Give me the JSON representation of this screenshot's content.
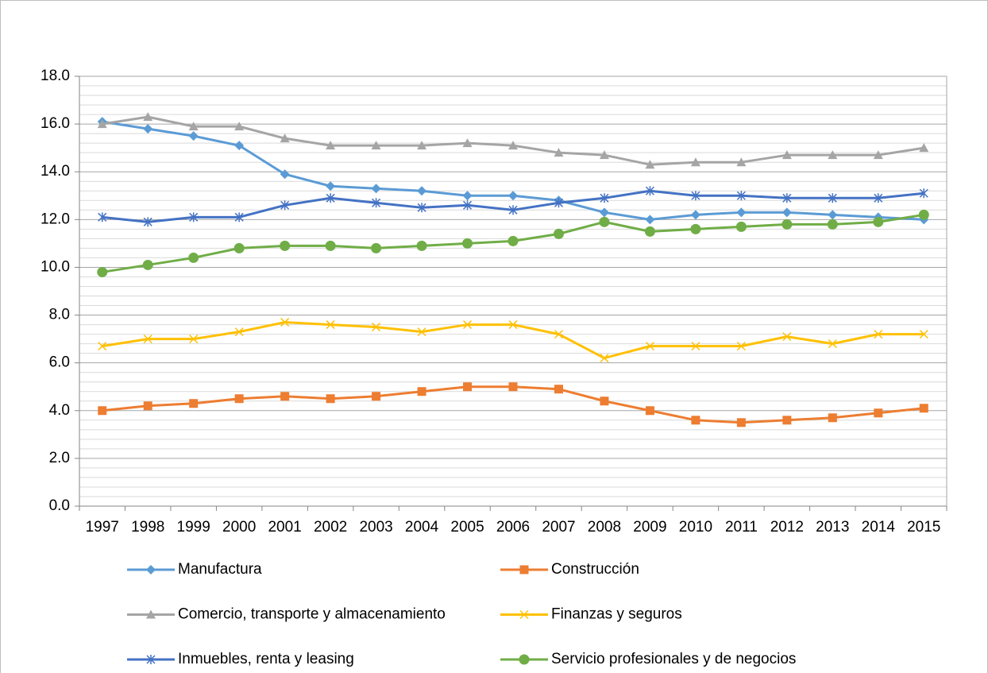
{
  "chart_data": {
    "type": "line",
    "categories": [
      "1997",
      "1998",
      "1999",
      "2000",
      "2001",
      "2002",
      "2003",
      "2004",
      "2005",
      "2006",
      "2007",
      "2008",
      "2009",
      "2010",
      "2011",
      "2012",
      "2013",
      "2014",
      "2015"
    ],
    "series": [
      {
        "name": "Manufactura",
        "color": "#5b9bd5",
        "marker": "diamond",
        "values": [
          16.1,
          15.8,
          15.5,
          15.1,
          13.9,
          13.4,
          13.3,
          13.2,
          13.0,
          13.0,
          12.8,
          12.3,
          12.0,
          12.2,
          12.3,
          12.3,
          12.2,
          12.1,
          12.0
        ]
      },
      {
        "name": "Construcción",
        "color": "#ed7d31",
        "marker": "square",
        "values": [
          4.0,
          4.2,
          4.3,
          4.5,
          4.6,
          4.5,
          4.6,
          4.8,
          5.0,
          5.0,
          4.9,
          4.4,
          4.0,
          3.6,
          3.5,
          3.6,
          3.7,
          3.9,
          4.1
        ]
      },
      {
        "name": "Comercio, transporte y almacenamiento",
        "color": "#a5a5a5",
        "marker": "triangle",
        "values": [
          16.0,
          16.3,
          15.9,
          15.9,
          15.4,
          15.1,
          15.1,
          15.1,
          15.2,
          15.1,
          14.8,
          14.7,
          14.3,
          14.4,
          14.4,
          14.7,
          14.7,
          14.7,
          15.0
        ]
      },
      {
        "name": "Finanzas y seguros",
        "color": "#ffc000",
        "marker": "x",
        "values": [
          6.7,
          7.0,
          7.0,
          7.3,
          7.7,
          7.6,
          7.5,
          7.3,
          7.6,
          7.6,
          7.2,
          6.2,
          6.7,
          6.7,
          6.7,
          7.1,
          6.8,
          7.2,
          7.2
        ]
      },
      {
        "name": "Inmuebles, renta y leasing",
        "color": "#4472c4",
        "marker": "star",
        "values": [
          12.1,
          11.9,
          12.1,
          12.1,
          12.6,
          12.9,
          12.7,
          12.5,
          12.6,
          12.4,
          12.7,
          12.9,
          13.2,
          13.0,
          13.0,
          12.9,
          12.9,
          12.9,
          13.1
        ]
      },
      {
        "name": "Servicio profesionales y de negocios",
        "color": "#70ad47",
        "marker": "circle",
        "values": [
          9.8,
          10.1,
          10.4,
          10.8,
          10.9,
          10.9,
          10.8,
          10.9,
          11.0,
          11.1,
          11.4,
          11.9,
          11.5,
          11.6,
          11.7,
          11.8,
          11.8,
          11.9,
          12.2
        ]
      }
    ],
    "ylim": [
      0,
      18
    ],
    "yticks": [
      {
        "value": 0,
        "label": "0.0"
      },
      {
        "value": 2,
        "label": "2.0"
      },
      {
        "value": 4,
        "label": "4.0"
      },
      {
        "value": 6,
        "label": "6.0"
      },
      {
        "value": 8,
        "label": "8.0"
      },
      {
        "value": 10,
        "label": "10.0"
      },
      {
        "value": 12,
        "label": "12.0"
      },
      {
        "value": 14,
        "label": "14.0"
      },
      {
        "value": 16,
        "label": "16.0"
      },
      {
        "value": 18,
        "label": "18.0"
      }
    ],
    "yticks_minor": [
      0.4,
      0.8,
      1.2,
      1.6,
      2.4,
      2.8,
      3.2,
      3.6,
      4.4,
      4.8,
      5.2,
      5.6,
      6.4,
      6.8,
      7.2,
      7.6,
      8.4,
      8.8,
      9.2,
      9.6,
      10.4,
      10.8,
      11.2,
      11.6,
      12.4,
      12.8,
      13.2,
      13.6,
      14.4,
      14.8,
      15.2,
      15.6,
      16.4,
      16.8,
      17.2,
      17.6
    ],
    "grid": true,
    "legend": "bottom"
  }
}
